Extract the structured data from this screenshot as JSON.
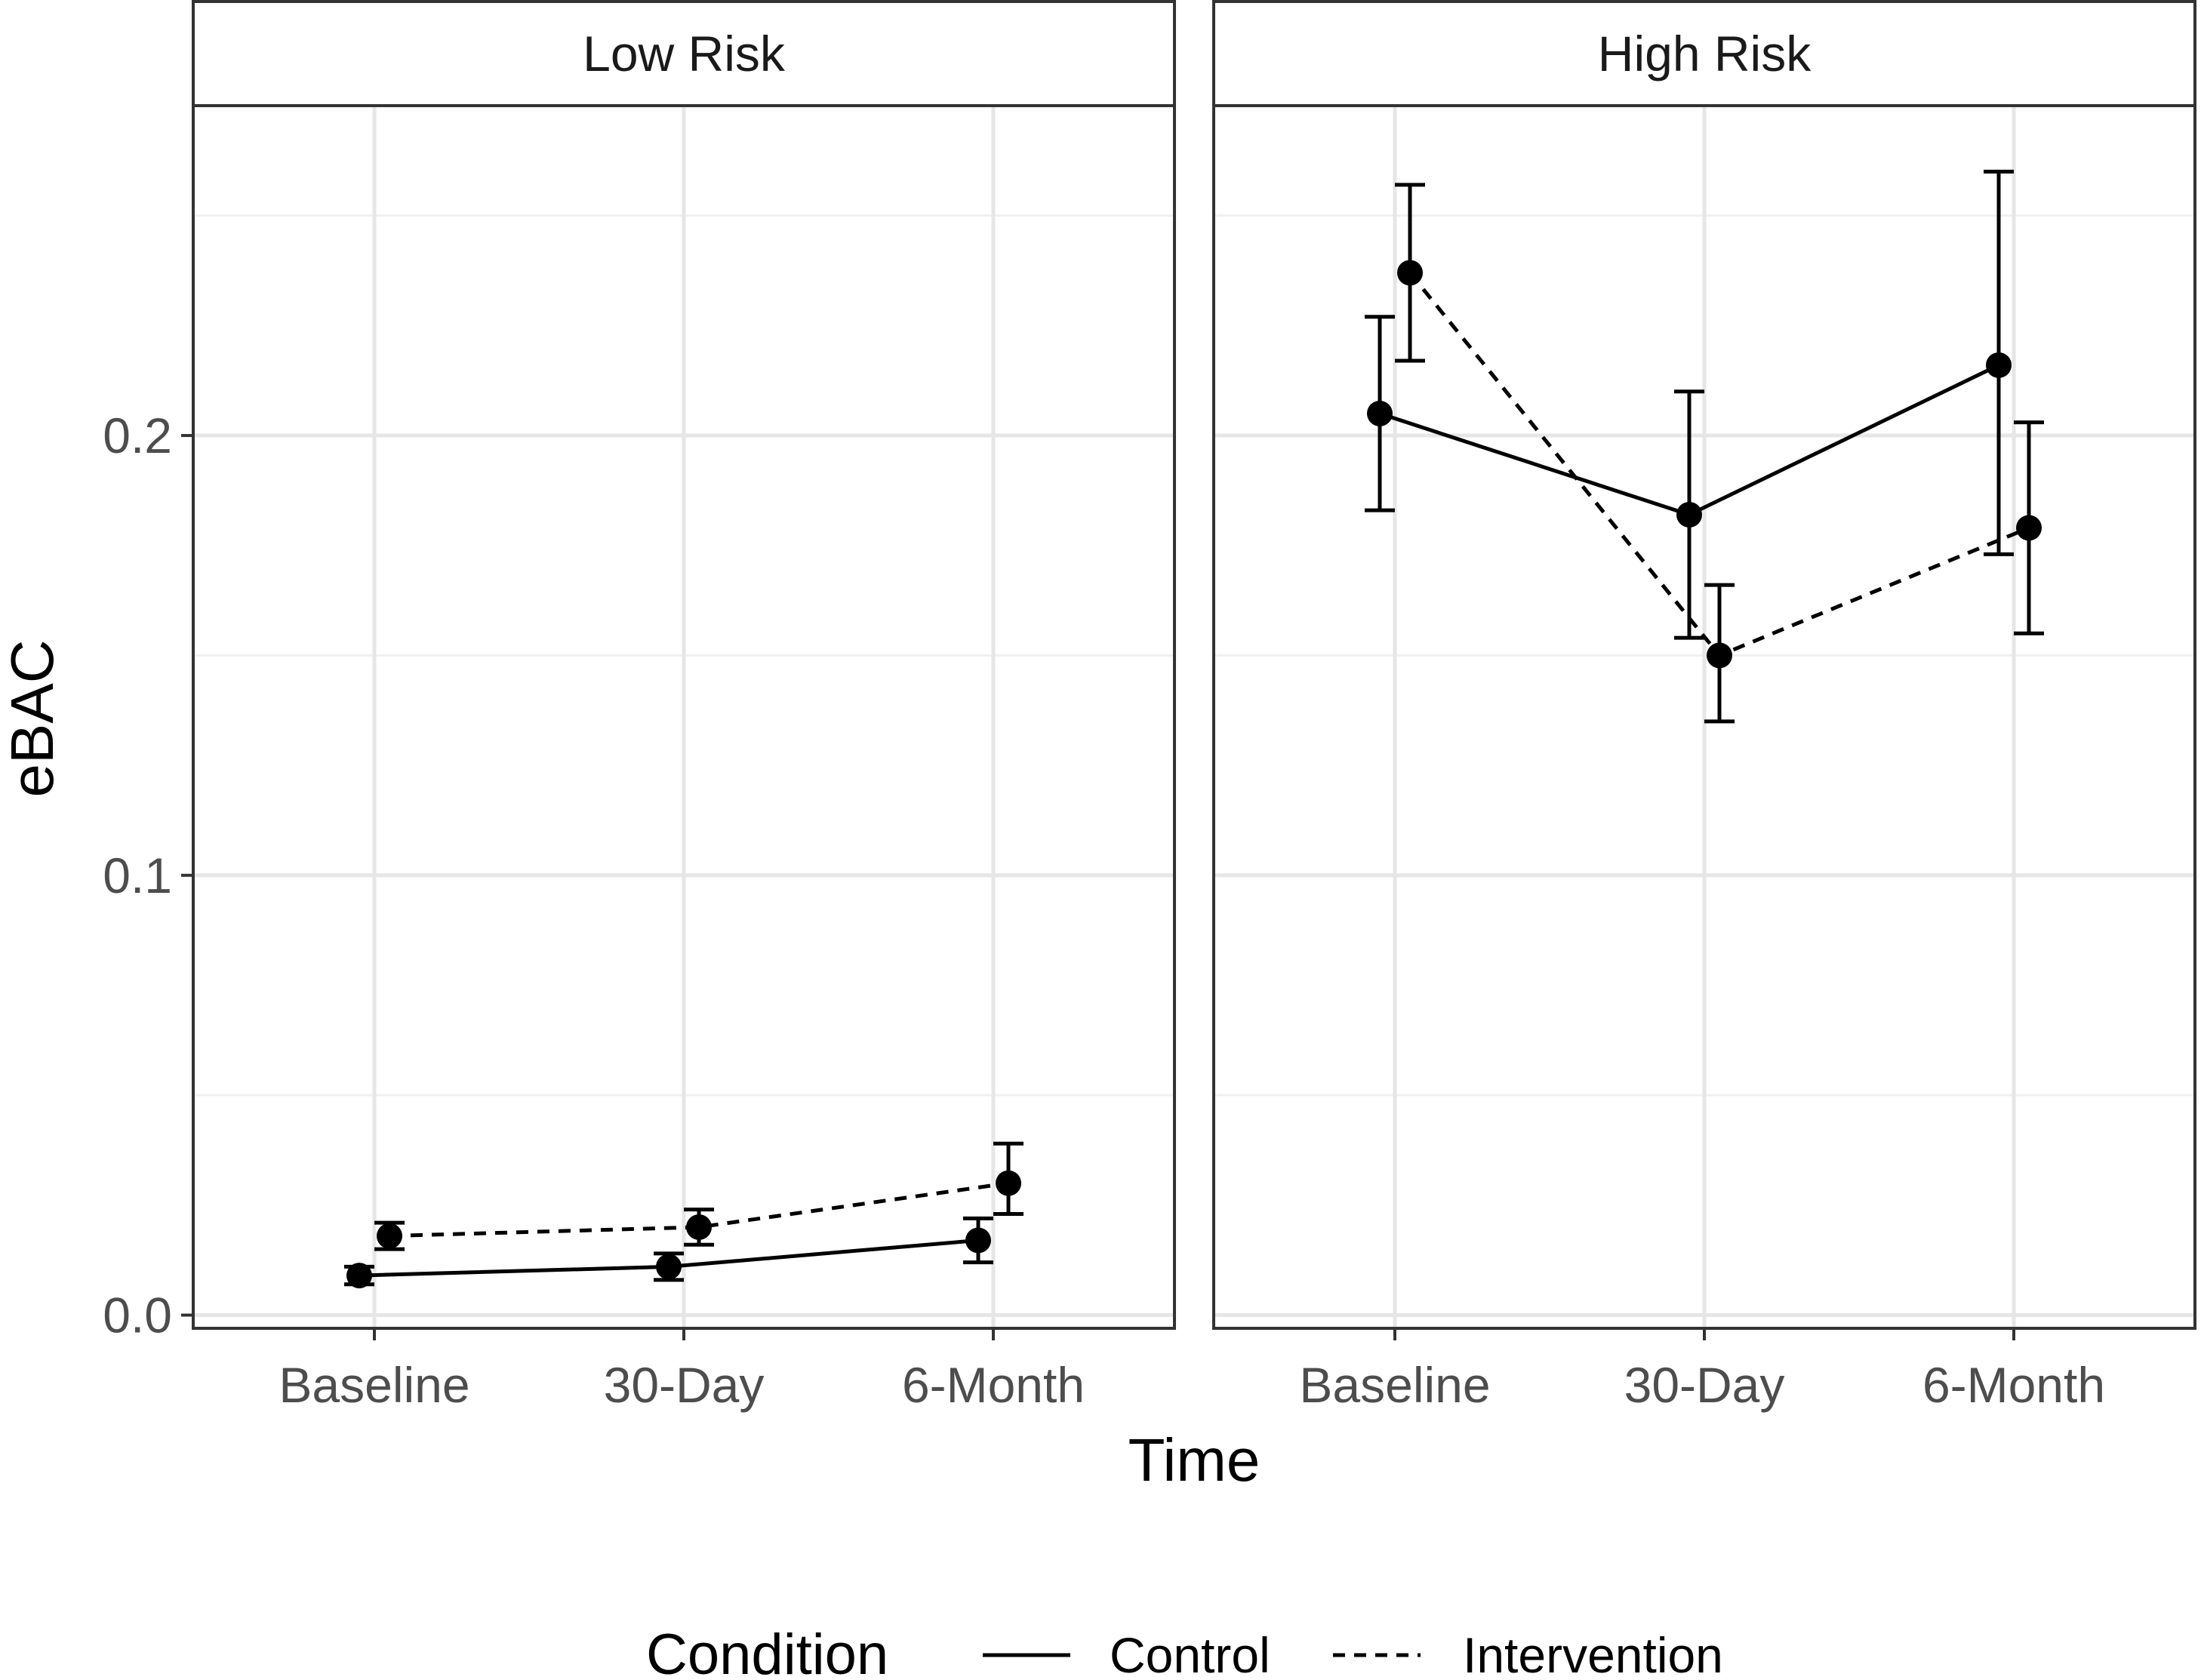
{
  "chart_data": {
    "type": "line",
    "title": "",
    "xlabel": "Time",
    "ylabel": "eBAC",
    "categories": [
      "Baseline",
      "30-Day",
      "6-Month"
    ],
    "yticks": [
      "0.0",
      "0.1",
      "0.2"
    ],
    "ylim": [
      -0.003,
      0.275
    ],
    "grid": true,
    "legend": {
      "title": "Condition",
      "position": "bottom",
      "entries": [
        "Control",
        "Intervention"
      ]
    },
    "panels": [
      {
        "label": "Low Risk",
        "series": [
          {
            "name": "Control",
            "linetype": "solid",
            "values": [
              0.009,
              0.011,
              0.017
            ],
            "lower": [
              0.007,
              0.008,
              0.012
            ],
            "upper": [
              0.011,
              0.014,
              0.022
            ]
          },
          {
            "name": "Intervention",
            "linetype": "dashed",
            "values": [
              0.018,
              0.02,
              0.03
            ],
            "lower": [
              0.015,
              0.016,
              0.023
            ],
            "upper": [
              0.021,
              0.024,
              0.039
            ]
          }
        ]
      },
      {
        "label": "High Risk",
        "series": [
          {
            "name": "Control",
            "linetype": "solid",
            "values": [
              0.205,
              0.182,
              0.216
            ],
            "lower": [
              0.183,
              0.154,
              0.173
            ],
            "upper": [
              0.227,
              0.21,
              0.26
            ]
          },
          {
            "name": "Intervention",
            "linetype": "dashed",
            "values": [
              0.237,
              0.15,
              0.179
            ],
            "lower": [
              0.217,
              0.135,
              0.155
            ],
            "upper": [
              0.257,
              0.166,
              0.203
            ]
          }
        ]
      }
    ]
  }
}
